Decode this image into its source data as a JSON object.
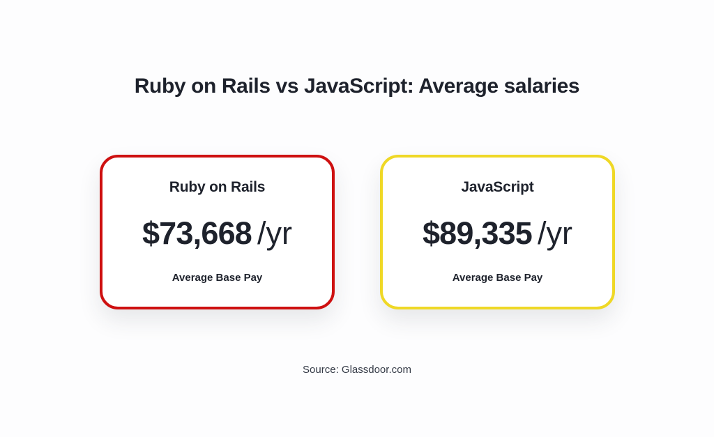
{
  "page": {
    "title": "Ruby on Rails vs JavaScript: Average salaries",
    "source": "Source: Glassdoor.com"
  },
  "colors": {
    "text": "#1e222c",
    "ruby_border": "#ce1010",
    "javascript_border": "#efd826",
    "card_background": "#ffffff",
    "page_background": "#fdfdfe",
    "source_text": "#353b47"
  },
  "cards": [
    {
      "name": "Ruby on Rails",
      "salary": "$73,668",
      "period": "/yr",
      "caption": "Average Base Pay",
      "border_color": "#ce1010"
    },
    {
      "name": "JavaScript",
      "salary": "$89,335",
      "period": "/yr",
      "caption": "Average Base Pay",
      "border_color": "#efd826"
    }
  ],
  "chart_data": {
    "type": "bar",
    "title": "Ruby on Rails vs JavaScript: Average salaries",
    "categories": [
      "Ruby on Rails",
      "JavaScript"
    ],
    "values": [
      73668,
      89335
    ],
    "value_labels": [
      "$73,668 /yr",
      "$89,335 /yr"
    ],
    "ylabel": "Average Base Pay (USD per year)",
    "annotations": [
      "Average Base Pay",
      "Average Base Pay"
    ],
    "source": "Source: Glassdoor.com",
    "legend_position": "none",
    "grid": false
  }
}
